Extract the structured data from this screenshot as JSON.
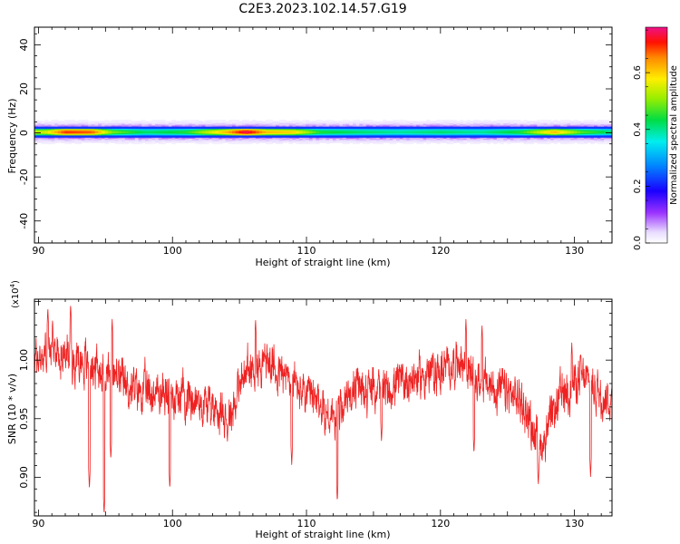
{
  "title": "C2E3.2023.102.14.57.G19",
  "chart_data": [
    {
      "type": "heatmap",
      "xlabel": "Height of straight line (km)",
      "ylabel": "Frequency (Hz)",
      "xlim": [
        89.7,
        132.8
      ],
      "ylim": [
        -50,
        48
      ],
      "xticks": [
        "90",
        "100",
        "110",
        "120",
        "130"
      ],
      "xtick_values": [
        90,
        100,
        110,
        120,
        130
      ],
      "yticks": [
        "-40",
        "-20",
        "0",
        "20",
        "40"
      ],
      "ytick_values": [
        -40,
        -20,
        0,
        20,
        40
      ],
      "colorbar": {
        "label": "Normalized spectral amplitude",
        "range": [
          0.0,
          0.76
        ],
        "ticks": [
          "0.0",
          "0.2",
          "0.4",
          "0.6"
        ],
        "tick_values": [
          0.0,
          0.2,
          0.4,
          0.6
        ]
      },
      "signal_band": {
        "center_frequency": 0.5,
        "core_halfwidth": 1.5,
        "halo_halfwidth": 5.5,
        "peak_amplitude_by_height": [
          {
            "x": 90.5,
            "amp": 0.55
          },
          {
            "x": 92,
            "amp": 0.7
          },
          {
            "x": 94,
            "amp": 0.68
          },
          {
            "x": 95.5,
            "amp": 0.5
          },
          {
            "x": 98,
            "amp": 0.42
          },
          {
            "x": 101,
            "amp": 0.45
          },
          {
            "x": 104,
            "amp": 0.62
          },
          {
            "x": 105.5,
            "amp": 0.75
          },
          {
            "x": 107,
            "amp": 0.62
          },
          {
            "x": 109,
            "amp": 0.6
          },
          {
            "x": 111,
            "amp": 0.45
          },
          {
            "x": 114,
            "amp": 0.42
          },
          {
            "x": 117,
            "amp": 0.4
          },
          {
            "x": 120,
            "amp": 0.42
          },
          {
            "x": 123,
            "amp": 0.4
          },
          {
            "x": 126,
            "amp": 0.45
          },
          {
            "x": 128.5,
            "amp": 0.62
          },
          {
            "x": 130.5,
            "amp": 0.48
          },
          {
            "x": 132.8,
            "amp": 0.42
          }
        ]
      }
    },
    {
      "type": "line",
      "xlabel": "Height of straight line (km)",
      "ylabel": "SNR (10 * v/v)",
      "y_multiplier": "(x10",
      "y_multiplier_exp": "4",
      "y_multiplier_close": ")",
      "xlim": [
        89.7,
        132.8
      ],
      "ylim": [
        0.867,
        1.052
      ],
      "xticks": [
        "90",
        "100",
        "110",
        "120",
        "130"
      ],
      "xtick_values": [
        90,
        100,
        110,
        120,
        130
      ],
      "yticks": [
        "0.90",
        "0.95",
        "1.00"
      ],
      "ytick_values": [
        0.9,
        0.95,
        1.0
      ],
      "line_color": "#ee2222",
      "series": [
        {
          "baseline": [
            {
              "x": 89.7,
              "y": 1.0
            },
            {
              "x": 91,
              "y": 1.01
            },
            {
              "x": 93,
              "y": 1.0
            },
            {
              "x": 95,
              "y": 0.99
            },
            {
              "x": 97,
              "y": 0.975
            },
            {
              "x": 99,
              "y": 0.972
            },
            {
              "x": 101,
              "y": 0.97
            },
            {
              "x": 103,
              "y": 0.96
            },
            {
              "x": 104.3,
              "y": 0.955
            },
            {
              "x": 105.5,
              "y": 0.99
            },
            {
              "x": 107,
              "y": 1.0
            },
            {
              "x": 109,
              "y": 0.98
            },
            {
              "x": 110.5,
              "y": 0.965
            },
            {
              "x": 112,
              "y": 0.95
            },
            {
              "x": 113.5,
              "y": 0.975
            },
            {
              "x": 116,
              "y": 0.975
            },
            {
              "x": 118,
              "y": 0.985
            },
            {
              "x": 120,
              "y": 0.99
            },
            {
              "x": 121.5,
              "y": 1.0
            },
            {
              "x": 123,
              "y": 0.98
            },
            {
              "x": 124.5,
              "y": 0.975
            },
            {
              "x": 126,
              "y": 0.965
            },
            {
              "x": 127.5,
              "y": 0.925
            },
            {
              "x": 129,
              "y": 0.97
            },
            {
              "x": 130.5,
              "y": 0.985
            },
            {
              "x": 132.8,
              "y": 0.965
            }
          ],
          "noise_amplitude": 0.013,
          "dips": [
            {
              "x": 93.8,
              "y": 0.89
            },
            {
              "x": 94.9,
              "y": 0.868
            },
            {
              "x": 95.4,
              "y": 0.915
            },
            {
              "x": 99.8,
              "y": 0.89
            },
            {
              "x": 104.1,
              "y": 0.93
            },
            {
              "x": 108.9,
              "y": 0.91
            },
            {
              "x": 112.3,
              "y": 0.879
            },
            {
              "x": 115.6,
              "y": 0.93
            },
            {
              "x": 122.5,
              "y": 0.92
            },
            {
              "x": 127.3,
              "y": 0.893
            },
            {
              "x": 131.2,
              "y": 0.9
            }
          ],
          "spikes": [
            {
              "x": 90.7,
              "y": 1.045
            },
            {
              "x": 92.4,
              "y": 1.048
            },
            {
              "x": 95.5,
              "y": 1.035
            },
            {
              "x": 106.2,
              "y": 1.035
            },
            {
              "x": 121.9,
              "y": 1.035
            },
            {
              "x": 123.1,
              "y": 1.03
            },
            {
              "x": 129.8,
              "y": 1.015
            }
          ]
        }
      ]
    }
  ]
}
